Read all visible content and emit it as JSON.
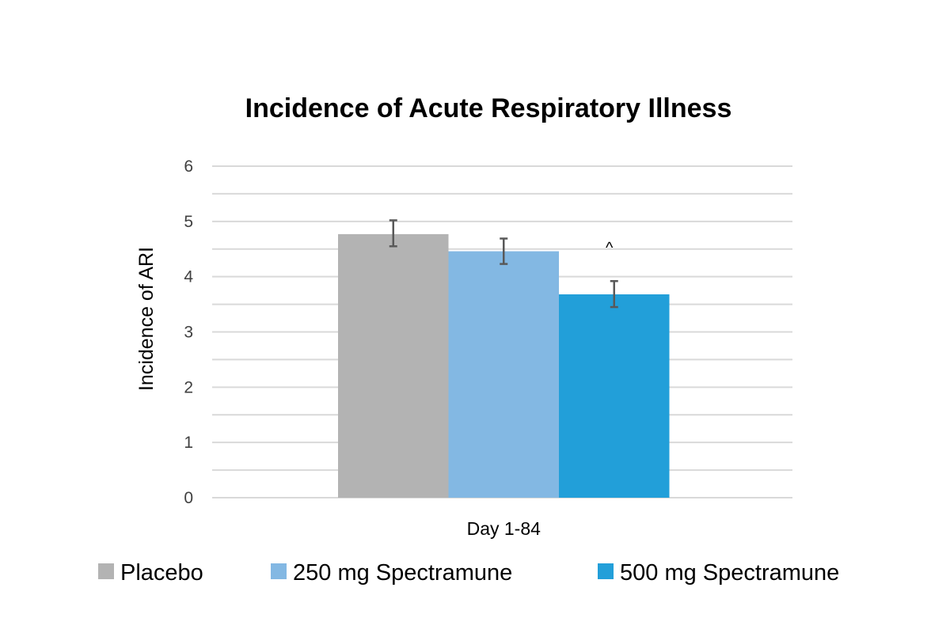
{
  "chart_data": {
    "type": "bar",
    "title": "Incidence of Acute Respiratory Illness",
    "xlabel": "",
    "ylabel": "Incidence of ARI",
    "categories": [
      "Day 1-84"
    ],
    "ylim": [
      0,
      6
    ],
    "yticks": [
      0,
      1,
      2,
      3,
      4,
      5,
      6
    ],
    "minor_grid_step": 0.5,
    "grid": true,
    "legend_position": "bottom",
    "series": [
      {
        "name": "Placebo",
        "values": [
          4.77
        ],
        "error_low": [
          4.55
        ],
        "error_high": [
          5.02
        ],
        "color": "#b3b3b3",
        "annotation": ""
      },
      {
        "name": "250 mg Spectramune",
        "values": [
          4.46
        ],
        "error_low": [
          4.23
        ],
        "error_high": [
          4.69
        ],
        "color": "#83b8e3",
        "annotation": ""
      },
      {
        "name": "500 mg Spectramune",
        "values": [
          3.68
        ],
        "error_low": [
          3.45
        ],
        "error_high": [
          3.92
        ],
        "color": "#229fd9",
        "annotation": "^"
      }
    ],
    "colors": {
      "gridline": "#d9d9d9",
      "error_bar": "#595959"
    }
  }
}
